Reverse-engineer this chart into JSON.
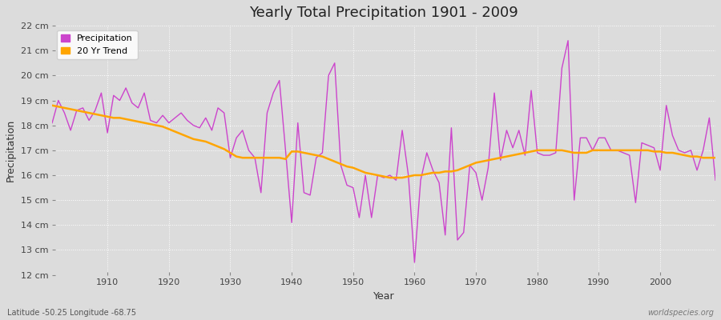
{
  "title": "Yearly Total Precipitation 1901 - 2009",
  "xlabel": "Year",
  "ylabel": "Precipitation",
  "footnote_left": "Latitude -50.25 Longitude -68.75",
  "footnote_right": "worldspecies.org",
  "legend_entries": [
    "Precipitation",
    "20 Yr Trend"
  ],
  "precip_color": "#CC44CC",
  "trend_color": "#FFA500",
  "bg_color": "#DCDCDC",
  "ylim": [
    12,
    22
  ],
  "ytick_labels": [
    "12 cm",
    "13 cm",
    "14 cm",
    "15 cm",
    "16 cm",
    "17 cm",
    "18 cm",
    "19 cm",
    "20 cm",
    "21 cm",
    "22 cm"
  ],
  "ytick_values": [
    12,
    13,
    14,
    15,
    16,
    17,
    18,
    19,
    20,
    21,
    22
  ],
  "xlim": [
    1901,
    2009
  ],
  "xticks": [
    1910,
    1920,
    1930,
    1940,
    1950,
    1960,
    1970,
    1980,
    1990,
    2000
  ],
  "years": [
    1901,
    1902,
    1903,
    1904,
    1905,
    1906,
    1907,
    1908,
    1909,
    1910,
    1911,
    1912,
    1913,
    1914,
    1915,
    1916,
    1917,
    1918,
    1919,
    1920,
    1921,
    1922,
    1923,
    1924,
    1925,
    1926,
    1927,
    1928,
    1929,
    1930,
    1931,
    1932,
    1933,
    1934,
    1935,
    1936,
    1937,
    1938,
    1939,
    1940,
    1941,
    1942,
    1943,
    1944,
    1945,
    1946,
    1947,
    1948,
    1949,
    1950,
    1951,
    1952,
    1953,
    1954,
    1955,
    1956,
    1957,
    1958,
    1959,
    1960,
    1961,
    1962,
    1963,
    1964,
    1965,
    1966,
    1967,
    1968,
    1969,
    1970,
    1971,
    1972,
    1973,
    1974,
    1975,
    1976,
    1977,
    1978,
    1979,
    1980,
    1981,
    1982,
    1983,
    1984,
    1985,
    1986,
    1987,
    1988,
    1989,
    1990,
    1991,
    1992,
    1993,
    1994,
    1995,
    1996,
    1997,
    1998,
    1999,
    2000,
    2001,
    2002,
    2003,
    2004,
    2005,
    2006,
    2007,
    2008,
    2009
  ],
  "precip": [
    18.1,
    19.0,
    18.5,
    17.8,
    18.6,
    18.7,
    18.2,
    18.6,
    19.3,
    17.7,
    19.2,
    19.0,
    19.5,
    18.9,
    18.7,
    19.3,
    18.2,
    18.1,
    18.4,
    18.1,
    18.3,
    18.5,
    18.2,
    18.0,
    17.9,
    18.3,
    17.8,
    18.7,
    18.5,
    16.7,
    17.5,
    17.8,
    17.0,
    16.7,
    15.3,
    18.5,
    19.3,
    19.8,
    17.0,
    14.1,
    18.1,
    15.3,
    15.2,
    16.7,
    16.9,
    20.0,
    20.5,
    16.4,
    15.6,
    15.5,
    14.3,
    16.0,
    14.3,
    16.0,
    15.9,
    16.0,
    15.8,
    17.8,
    16.0,
    12.5,
    15.8,
    16.9,
    16.2,
    15.7,
    13.6,
    17.9,
    13.4,
    13.7,
    16.4,
    16.1,
    15.0,
    16.3,
    19.3,
    16.6,
    17.8,
    17.1,
    17.8,
    16.8,
    19.4,
    16.9,
    16.8,
    16.8,
    16.9,
    20.3,
    21.4,
    15.0,
    17.5,
    17.5,
    17.0,
    17.5,
    17.5,
    17.0,
    17.0,
    16.9,
    16.8,
    14.9,
    17.3,
    17.2,
    17.1,
    16.2,
    18.8,
    17.6,
    17.0,
    16.9,
    17.0,
    16.2,
    17.0,
    18.3,
    15.8
  ],
  "trend": [
    18.8,
    18.75,
    18.7,
    18.65,
    18.6,
    18.55,
    18.5,
    18.45,
    18.4,
    18.35,
    18.3,
    18.3,
    18.25,
    18.2,
    18.15,
    18.1,
    18.05,
    18.0,
    17.95,
    17.85,
    17.75,
    17.65,
    17.55,
    17.45,
    17.4,
    17.35,
    17.25,
    17.15,
    17.05,
    16.9,
    16.75,
    16.7,
    16.7,
    16.7,
    16.7,
    16.7,
    16.7,
    16.7,
    16.65,
    16.95,
    16.95,
    16.9,
    16.85,
    16.8,
    16.75,
    16.65,
    16.55,
    16.45,
    16.35,
    16.3,
    16.2,
    16.1,
    16.05,
    16.0,
    15.95,
    15.9,
    15.9,
    15.9,
    15.95,
    16.0,
    16.0,
    16.05,
    16.1,
    16.1,
    16.15,
    16.15,
    16.2,
    16.3,
    16.4,
    16.5,
    16.55,
    16.6,
    16.65,
    16.7,
    16.75,
    16.8,
    16.85,
    16.9,
    16.95,
    17.0,
    17.0,
    17.0,
    17.0,
    17.0,
    16.95,
    16.9,
    16.9,
    16.9,
    17.0,
    17.0,
    17.0,
    17.0,
    17.0,
    17.0,
    17.0,
    17.0,
    17.0,
    17.0,
    16.95,
    16.95,
    16.9,
    16.9,
    16.85,
    16.8,
    16.75,
    16.75,
    16.7,
    16.7,
    16.7
  ]
}
